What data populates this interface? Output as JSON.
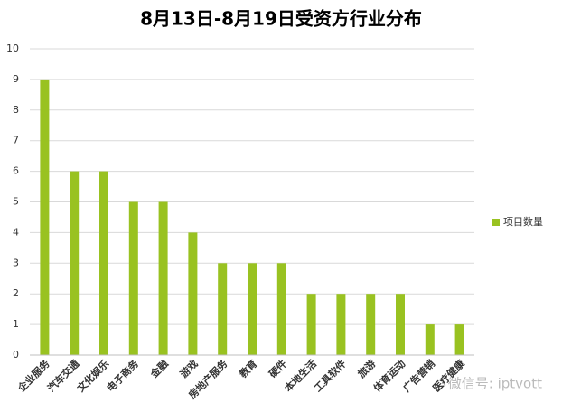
{
  "chart_data": {
    "type": "bar",
    "title": "8月13日-8月19日受资方行业分布",
    "categories": [
      "企业服务",
      "汽车交通",
      "文化娱乐",
      "电子商务",
      "金融",
      "游戏",
      "房地产服务",
      "教育",
      "硬件",
      "本地生活",
      "工具软件",
      "旅游",
      "体育运动",
      "广告营销",
      "医疗健康"
    ],
    "series": [
      {
        "name": "项目数量",
        "color": "#99c221",
        "values": [
          9,
          6,
          6,
          5,
          5,
          4,
          3,
          3,
          3,
          2,
          2,
          2,
          2,
          1,
          1
        ]
      }
    ],
    "ylim": [
      0,
      10
    ],
    "yticks": [
      0,
      1,
      2,
      3,
      4,
      5,
      6,
      7,
      8,
      9,
      10
    ],
    "grid": true,
    "legend": "right",
    "watermark": "微信号: iptvott"
  }
}
